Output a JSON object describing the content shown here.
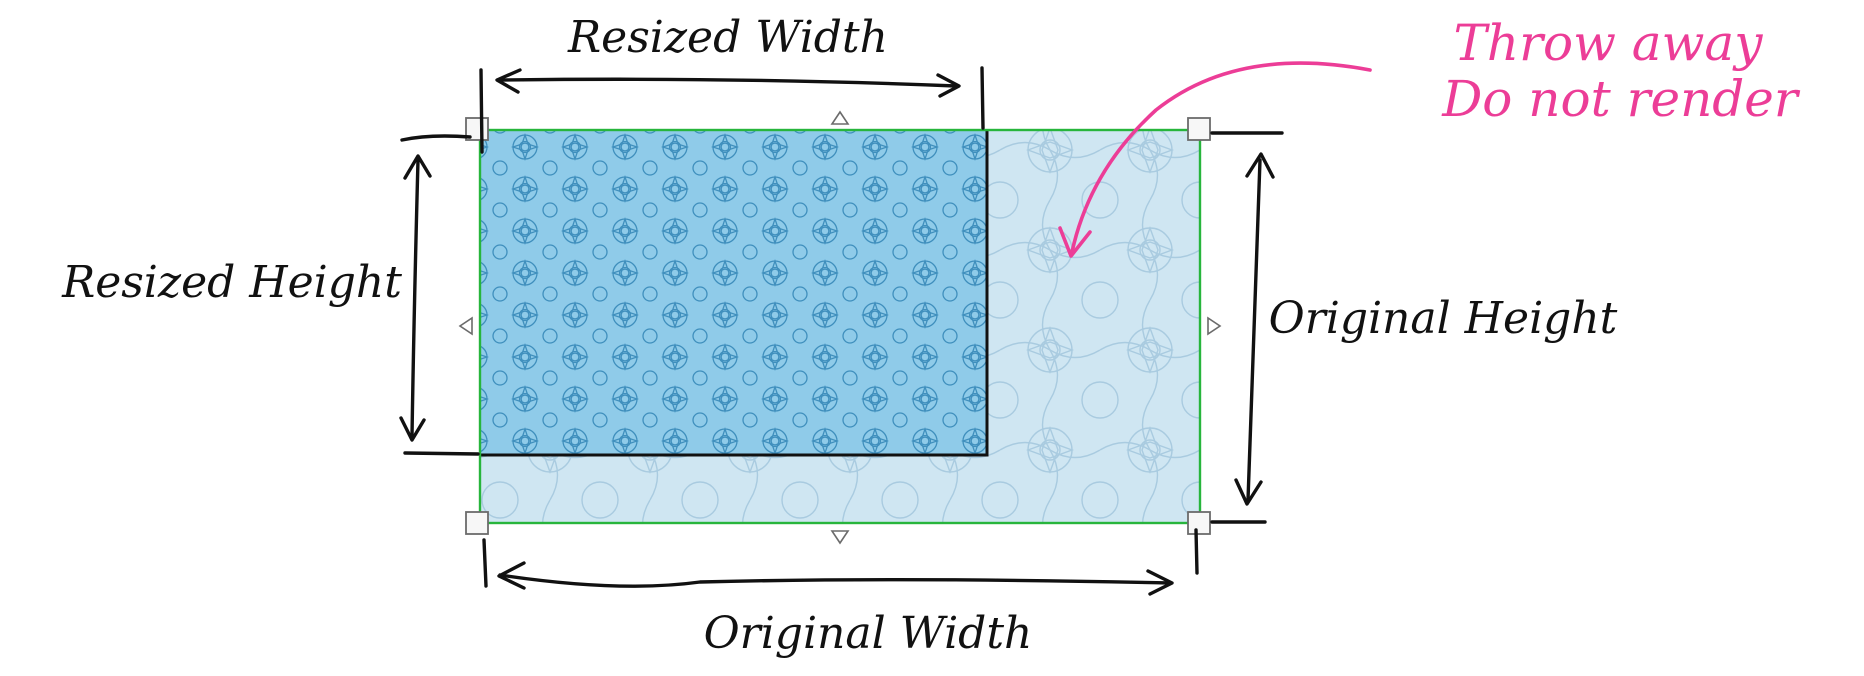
{
  "labels": {
    "resized_width": "Resized Width",
    "resized_height": "Resized Height",
    "original_width": "Original Width",
    "original_height": "Original Height",
    "throw_away_line1": "Throw away",
    "throw_away_line2": "Do not render"
  },
  "colors": {
    "original_fill": "#cfe6f2",
    "original_pattern": "#a9cbe0",
    "resized_fill": "#8fcbe9",
    "resized_pattern": "#3f8fbd",
    "selection_outline": "#27b53c",
    "ink": "#111111",
    "annotation": "#ec3d97"
  }
}
